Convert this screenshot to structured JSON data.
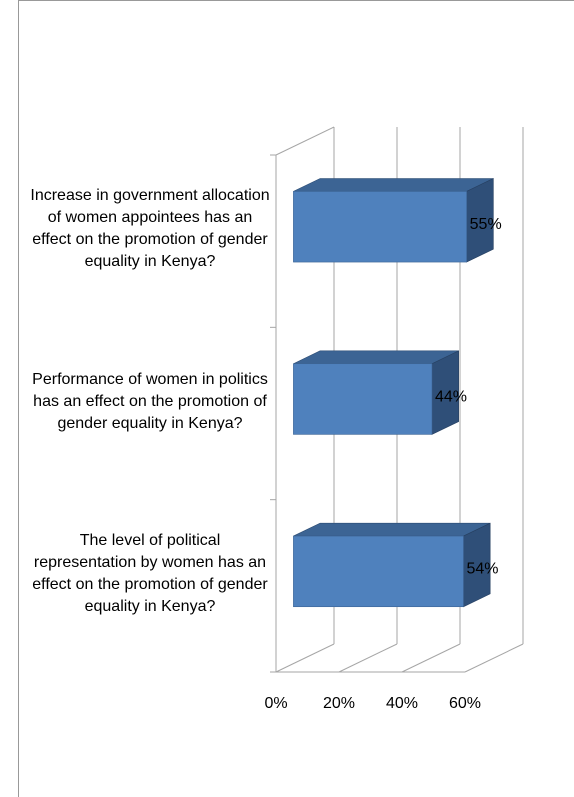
{
  "chart_data": {
    "type": "bar",
    "orientation": "horizontal",
    "three_d": true,
    "categories": [
      "Increase in government allocation of women appointees has an effect on the promotion of gender equality in Kenya?",
      "Performance of women in politics has an effect  on the promotion of gender equality in Kenya?",
      "The level of political representation by women has an effect on the promotion of gender equality in Kenya?"
    ],
    "values": [
      55,
      44,
      54
    ],
    "value_labels": [
      "55%",
      "44%",
      "54%"
    ],
    "color": "#4f81bd",
    "xlim": [
      0,
      60
    ],
    "xticks": [
      {
        "value": 0,
        "label": "0%"
      },
      {
        "value": 20,
        "label": "20%"
      },
      {
        "value": 40,
        "label": "40%"
      },
      {
        "value": 60,
        "label": "60%"
      }
    ],
    "grid": true
  }
}
